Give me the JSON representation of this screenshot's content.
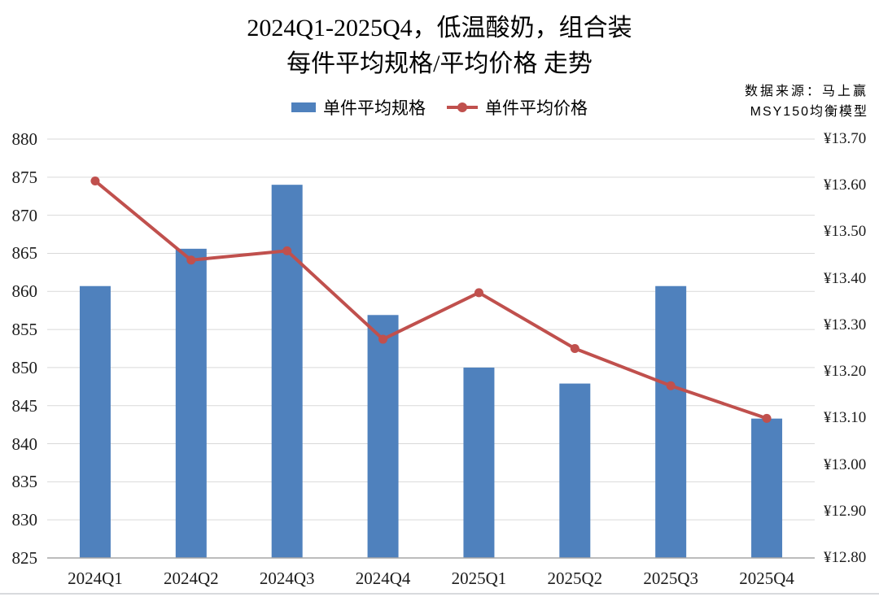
{
  "title": {
    "line1": "2024Q1-2025Q4，低温酸奶，组合装",
    "line2": "每件平均规格/平均价格 走势"
  },
  "source": {
    "line1": "数据来源：马上赢",
    "line2": "MSY150均衡模型"
  },
  "legend": {
    "spec_label": "单件平均规格",
    "price_label": "单件平均价格"
  },
  "colors": {
    "bar": "#4F81BD",
    "line": "#C0504D",
    "grid": "#D9D9D9",
    "axis": "#A6A6A6",
    "text": "#1c1c1c"
  },
  "chart_data": {
    "type": "bar",
    "subtype": "combo bar+line, dual y-axis",
    "title": "2024Q1-2025Q4，低温酸奶，组合装 每件平均规格/平均价格 走势",
    "categories": [
      "2024Q1",
      "2024Q2",
      "2024Q3",
      "2024Q4",
      "2025Q1",
      "2025Q2",
      "2025Q3",
      "2025Q4"
    ],
    "series": [
      {
        "name": "单件平均规格",
        "type": "bar",
        "axis": "left",
        "color": "#4F81BD",
        "values": [
          860.7,
          865.6,
          874.0,
          856.9,
          850.0,
          847.9,
          860.7,
          843.3
        ]
      },
      {
        "name": "单件平均价格",
        "type": "line",
        "axis": "right",
        "color": "#C0504D",
        "values": [
          13.61,
          13.44,
          13.46,
          13.27,
          13.37,
          13.25,
          13.17,
          13.1
        ]
      }
    ],
    "left_axis": {
      "min": 825,
      "max": 880,
      "step": 5,
      "tick_labels": [
        "880",
        "875",
        "870",
        "865",
        "860",
        "855",
        "850",
        "845",
        "840",
        "835",
        "830",
        "825"
      ]
    },
    "right_axis": {
      "min": 12.8,
      "max": 13.7,
      "step": 0.1,
      "tick_labels": [
        "¥13.70",
        "¥13.60",
        "¥13.50",
        "¥13.40",
        "¥13.30",
        "¥13.20",
        "¥13.10",
        "¥13.00",
        "¥12.90",
        "¥12.80"
      ]
    },
    "grid": true,
    "legend_position": "top"
  }
}
